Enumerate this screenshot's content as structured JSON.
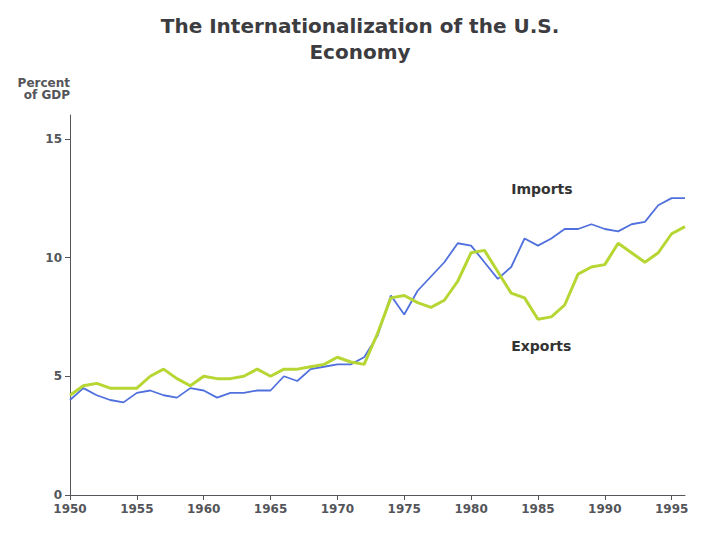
{
  "chart_data": {
    "type": "line",
    "title": "The Internationalization of the U.S.\nEconomy",
    "ylabel": "Percent\nof GDP",
    "x": [
      1950,
      1951,
      1952,
      1953,
      1954,
      1955,
      1956,
      1957,
      1958,
      1959,
      1960,
      1961,
      1962,
      1963,
      1964,
      1965,
      1966,
      1967,
      1968,
      1969,
      1970,
      1971,
      1972,
      1973,
      1974,
      1975,
      1976,
      1977,
      1978,
      1979,
      1980,
      1981,
      1982,
      1983,
      1984,
      1985,
      1986,
      1987,
      1988,
      1989,
      1990,
      1991,
      1992,
      1993,
      1994,
      1995,
      1996
    ],
    "series": [
      {
        "values": [
          4.0,
          4.5,
          4.2,
          4.0,
          3.9,
          4.3,
          4.4,
          4.2,
          4.1,
          4.5,
          4.4,
          4.1,
          4.3,
          4.3,
          4.4,
          4.4,
          5.0,
          4.8,
          5.3,
          5.4,
          5.5,
          5.5,
          5.8,
          6.7,
          8.4,
          7.6,
          8.6,
          9.2,
          9.8,
          10.6,
          10.5,
          9.8,
          9.1,
          9.6,
          10.8,
          10.5,
          10.8,
          11.2,
          11.2,
          11.4,
          11.2,
          11.1,
          11.4,
          11.5,
          12.2,
          12.5,
          12.5
        ]
      },
      {
        "values": [
          4.2,
          4.6,
          4.7,
          4.5,
          4.5,
          4.5,
          5.0,
          5.3,
          4.9,
          4.6,
          5.0,
          4.9,
          4.9,
          5.0,
          5.3,
          5.0,
          5.3,
          5.3,
          5.4,
          5.5,
          5.8,
          5.6,
          5.5,
          6.8,
          8.3,
          8.4,
          8.1,
          7.9,
          8.2,
          9.0,
          10.2,
          10.3,
          9.4,
          8.5,
          8.3,
          7.4,
          7.5,
          8.0,
          9.3,
          9.6,
          9.7,
          10.6,
          10.2,
          9.8,
          10.2,
          11.0,
          11.3
        ]
      }
    ],
    "annotations": [
      {
        "text": "Imports",
        "x": 1983,
        "y": 12.6
      },
      {
        "text": "Exports",
        "x": 1983,
        "y": 6.0
      }
    ],
    "xlim": [
      1950,
      1996
    ],
    "xticks": [
      1950,
      1955,
      1960,
      1965,
      1970,
      1975,
      1980,
      1985,
      1990,
      1995
    ],
    "ylim": [
      0,
      16
    ],
    "yticks": [
      0,
      5,
      10,
      15
    ],
    "grid": false
  }
}
